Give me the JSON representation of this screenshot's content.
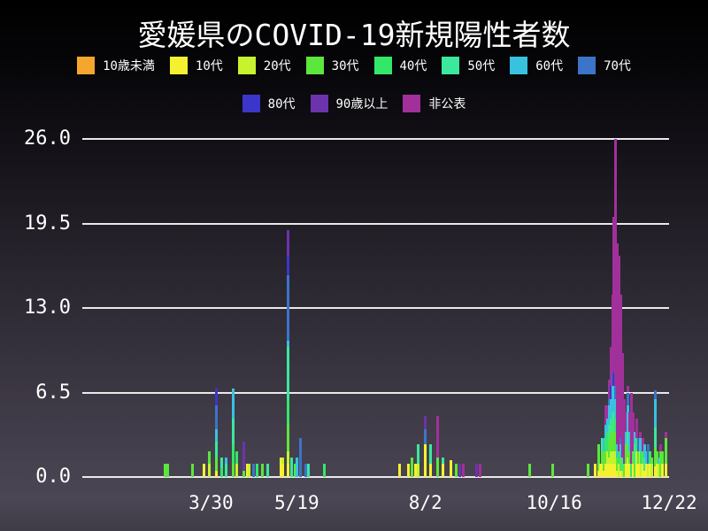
{
  "title": "愛媛県のCOVID-19新規陽性者数",
  "legend": {
    "rows": [
      [
        {
          "id": "u10",
          "label": "10歳未満",
          "color": "#F5A62C"
        },
        {
          "id": "a10",
          "label": "10代",
          "color": "#F5F12E"
        },
        {
          "id": "a20",
          "label": "20代",
          "color": "#C6F22E"
        },
        {
          "id": "a30",
          "label": "30代",
          "color": "#5BE73B"
        },
        {
          "id": "a40",
          "label": "40代",
          "color": "#33E769"
        },
        {
          "id": "a50",
          "label": "50代",
          "color": "#3AE89E"
        },
        {
          "id": "a60",
          "label": "60代",
          "color": "#38C2DF"
        },
        {
          "id": "a70",
          "label": "70代",
          "color": "#3C74C8"
        }
      ],
      [
        {
          "id": "a80",
          "label": "80代",
          "color": "#3B36C9"
        },
        {
          "id": "a90",
          "label": "90歳以上",
          "color": "#6C33AD"
        },
        {
          "id": "nd",
          "label": "非公表",
          "color": "#A2309B"
        }
      ]
    ]
  },
  "chart_data": {
    "type": "bar",
    "stacked": true,
    "title": "愛媛県のCOVID-19新規陽性者数",
    "xlabel": "",
    "ylabel": "",
    "ylim": [
      0,
      26
    ],
    "yticks": [
      0,
      6.5,
      13,
      19.5,
      26
    ],
    "ytick_labels": [
      "0.0",
      "6.5",
      "13.0",
      "19.5",
      "26.0"
    ],
    "xticks": [
      "3/30",
      "5/19",
      "8/2",
      "10/16",
      "12/22"
    ],
    "x_range_dates": [
      "1/15",
      "12/22"
    ],
    "grid": "horizontal",
    "legend_position": "top",
    "stack_order": [
      "u10",
      "a10",
      "a20",
      "a30",
      "a40",
      "a50",
      "a60",
      "a70",
      "a80",
      "a90",
      "nd"
    ],
    "series_labels": {
      "u10": "10歳未満",
      "a10": "10代",
      "a20": "20代",
      "a30": "30代",
      "a40": "40代",
      "a50": "50代",
      "a60": "60代",
      "a70": "70代",
      "a80": "80代",
      "a90": "90歳以上",
      "nd": "非公表"
    },
    "bars": [
      {
        "date": "3/3",
        "counts": {
          "a30": 1
        }
      },
      {
        "date": "3/5",
        "counts": {
          "a30": 1
        }
      },
      {
        "date": "3/19",
        "counts": {
          "a30": 1
        }
      },
      {
        "date": "3/26",
        "counts": {
          "a10": 1
        }
      },
      {
        "date": "3/29",
        "counts": {
          "a20": 1,
          "a30": 1
        }
      },
      {
        "date": "4/2",
        "counts": {
          "a10": 0.5,
          "a30": 1,
          "a50": 1.2,
          "a60": 1,
          "a70": 1.8,
          "a80": 1.3
        }
      },
      {
        "date": "4/5",
        "counts": {
          "a40": 0.7,
          "a50": 0.8
        }
      },
      {
        "date": "4/8",
        "counts": {
          "a50": 1,
          "a60": 0.5
        }
      },
      {
        "date": "4/12",
        "counts": {
          "a30": 1,
          "a40": 1.5,
          "a50": 2,
          "a60": 2.3
        }
      },
      {
        "date": "4/14",
        "counts": {
          "a20": 1,
          "a40": 1
        }
      },
      {
        "date": "4/18",
        "counts": {
          "a30": 0.5,
          "a90": 2.2
        }
      },
      {
        "date": "4/20",
        "counts": {
          "a10": 1
        }
      },
      {
        "date": "4/21",
        "counts": {
          "a20": 1
        }
      },
      {
        "date": "4/24",
        "counts": {
          "a70": 1
        }
      },
      {
        "date": "4/26",
        "counts": {
          "a40": 1
        }
      },
      {
        "date": "4/29",
        "counts": {
          "a30": 1
        }
      },
      {
        "date": "5/2",
        "counts": {
          "a50": 1
        }
      },
      {
        "date": "5/10",
        "counts": {
          "a10": 1.5
        }
      },
      {
        "date": "5/11",
        "counts": {
          "a10": 1,
          "a20": 0.5
        }
      },
      {
        "date": "5/14",
        "counts": {
          "a10": 1,
          "a20": 1,
          "a30": 2,
          "a40": 2,
          "a50": 4,
          "a60": 0.5,
          "a70": 5,
          "a80": 1.5,
          "a90": 2
        }
      },
      {
        "date": "5/16",
        "counts": {
          "a50": 1.5
        }
      },
      {
        "date": "5/18",
        "counts": {
          "a30": 1
        }
      },
      {
        "date": "5/19",
        "counts": {
          "a60": 1.5
        }
      },
      {
        "date": "5/21",
        "counts": {
          "a70": 3
        }
      },
      {
        "date": "5/24",
        "counts": {
          "a70": 1
        }
      },
      {
        "date": "5/26",
        "counts": {
          "a50": 1
        }
      },
      {
        "date": "6/4",
        "counts": {
          "a40": 1
        }
      },
      {
        "date": "7/18",
        "counts": {
          "a10": 1
        }
      },
      {
        "date": "7/23",
        "counts": {
          "a10": 1
        }
      },
      {
        "date": "7/25",
        "counts": {
          "a30": 1.5
        }
      },
      {
        "date": "7/27",
        "counts": {
          "a10": 1
        }
      },
      {
        "date": "7/29",
        "counts": {
          "a20": 1,
          "a50": 1.5
        }
      },
      {
        "date": "8/2",
        "counts": {
          "a10": 2.5,
          "a70": 1.2,
          "a90": 1
        }
      },
      {
        "date": "8/5",
        "counts": {
          "a10": 1,
          "a50": 1.5
        }
      },
      {
        "date": "8/9",
        "counts": {
          "a30": 1.5,
          "nd": 3.2
        }
      },
      {
        "date": "8/12",
        "counts": {
          "a10": 1,
          "a50": 0.5
        }
      },
      {
        "date": "8/17",
        "counts": {
          "a10": 1.3
        }
      },
      {
        "date": "8/20",
        "counts": {
          "a30": 1
        }
      },
      {
        "date": "8/22",
        "counts": {
          "a90": 1
        }
      },
      {
        "date": "8/24",
        "counts": {
          "nd": 1
        }
      },
      {
        "date": "9/1",
        "counts": {
          "a90": 1
        }
      },
      {
        "date": "9/3",
        "counts": {
          "nd": 1
        }
      },
      {
        "date": "10/2",
        "counts": {
          "a30": 1
        }
      },
      {
        "date": "10/15",
        "counts": {
          "a30": 1
        }
      },
      {
        "date": "11/5",
        "counts": {
          "a30": 1
        }
      },
      {
        "date": "11/9",
        "counts": {
          "a10": 1
        }
      },
      {
        "date": "11/11",
        "counts": {
          "a10": 0.5,
          "a30": 2
        }
      },
      {
        "date": "11/12",
        "counts": {
          "a10": 1
        }
      },
      {
        "date": "11/13",
        "counts": {
          "a10": 1,
          "a30": 1,
          "a50": 1
        }
      },
      {
        "date": "11/14",
        "counts": {
          "a10": 0.5,
          "a30": 1.5,
          "a60": 1
        }
      },
      {
        "date": "11/15",
        "counts": {
          "a10": 1,
          "a30": 1,
          "a40": 1,
          "a60": 1,
          "nd": 1.5
        }
      },
      {
        "date": "11/16",
        "counts": {
          "a10": 1,
          "a20": 1,
          "a40": 1.5,
          "a60": 1,
          "nd": 1
        }
      },
      {
        "date": "11/17",
        "counts": {
          "a10": 1,
          "a20": 0.5,
          "a30": 1.5,
          "a50": 1,
          "a60": 1.5,
          "a70": 0.5,
          "nd": 1.5
        }
      },
      {
        "date": "11/18",
        "counts": {
          "a10": 1,
          "a20": 1,
          "a30": 1.5,
          "a50": 1,
          "a60": 1.5,
          "a80": 1,
          "nd": 3
        }
      },
      {
        "date": "11/19",
        "counts": {
          "a10": 1,
          "a20": 1,
          "a30": 2,
          "a40": 1,
          "a60": 2,
          "a70": 1,
          "nd": 6
        }
      },
      {
        "date": "11/20",
        "counts": {
          "a10": 1,
          "a20": 1,
          "a30": 1.5,
          "a50": 1.5,
          "a60": 2,
          "a80": 1,
          "nd": 12
        }
      },
      {
        "date": "11/21",
        "counts": {
          "a10": 1,
          "a20": 1,
          "a30": 1.5,
          "a40": 1,
          "a60": 1.5,
          "a70": 1,
          "nd": 19
        }
      },
      {
        "date": "11/22",
        "counts": {
          "a10": 0.5,
          "a30": 1,
          "a60": 1,
          "nd": 15.5
        }
      },
      {
        "date": "11/23",
        "counts": {
          "a20": 1,
          "a40": 1,
          "nd": 15
        }
      },
      {
        "date": "11/24",
        "counts": {
          "a10": 0.5,
          "a30": 1,
          "a60": 1,
          "a70": 0.5,
          "nd": 11
        }
      },
      {
        "date": "11/25",
        "counts": {
          "a20": 0.5,
          "a50": 1,
          "nd": 8
        }
      },
      {
        "date": "11/26",
        "counts": {
          "a30": 1,
          "nd": 5
        }
      },
      {
        "date": "11/27",
        "counts": {
          "a10": 1,
          "a30": 1.5,
          "a60": 1,
          "nd": 1.5
        }
      },
      {
        "date": "11/28",
        "counts": {
          "a10": 1,
          "a20": 0.5,
          "a30": 1,
          "a50": 1,
          "a60": 2,
          "a70": 1,
          "nd": 0.5
        }
      },
      {
        "date": "11/29",
        "counts": {
          "a10": 1,
          "a30": 1,
          "a60": 1.5,
          "nd": 1.5
        }
      },
      {
        "date": "11/30",
        "counts": {
          "a40": 1,
          "nd": 5.5
        }
      },
      {
        "date": "12/1",
        "counts": {
          "a10": 1,
          "a30": 1,
          "nd": 3
        }
      },
      {
        "date": "12/2",
        "counts": {
          "a30": 1,
          "a50": 1.5,
          "a60": 1
        }
      },
      {
        "date": "12/3",
        "counts": {
          "a10": 1,
          "a20": 1,
          "a40": 1,
          "nd": 1.5
        }
      },
      {
        "date": "12/4",
        "counts": {
          "a10": 1,
          "a30": 1,
          "a70": 1
        }
      },
      {
        "date": "12/5",
        "counts": {
          "a10": 1,
          "a20": 1,
          "a60": 1,
          "nd": 0.5
        }
      },
      {
        "date": "12/6",
        "counts": {
          "a20": 1,
          "a40": 1
        }
      },
      {
        "date": "12/7",
        "counts": {
          "a10": 1,
          "a30": 1,
          "nd": 1
        }
      },
      {
        "date": "12/8",
        "counts": {
          "a10": 0.5,
          "a50": 1,
          "a60": 1
        }
      },
      {
        "date": "12/9",
        "counts": {
          "a10": 1,
          "a60": 1
        }
      },
      {
        "date": "12/10",
        "counts": {
          "a20": 1,
          "a70": 1.5
        }
      },
      {
        "date": "12/11",
        "counts": {
          "a10": 1,
          "a40": 1
        }
      },
      {
        "date": "12/12",
        "counts": {
          "a20": 1,
          "a30": 0.5
        }
      },
      {
        "date": "12/14",
        "counts": {
          "a10": 0.8,
          "a30": 1.5,
          "a50": 1.5,
          "a60": 2.2,
          "a70": 0.7
        }
      },
      {
        "date": "12/15",
        "counts": {
          "a10": 1,
          "a30": 1
        }
      },
      {
        "date": "12/16",
        "counts": {
          "a20": 1,
          "a60": 0.5
        }
      },
      {
        "date": "12/17",
        "counts": {
          "a30": 2,
          "nd": 0.5
        }
      },
      {
        "date": "12/18",
        "counts": {
          "a10": 1,
          "a30": 1
        }
      },
      {
        "date": "12/20",
        "counts": {
          "a10": 1,
          "a30": 2,
          "nd": 0.5
        }
      }
    ]
  }
}
